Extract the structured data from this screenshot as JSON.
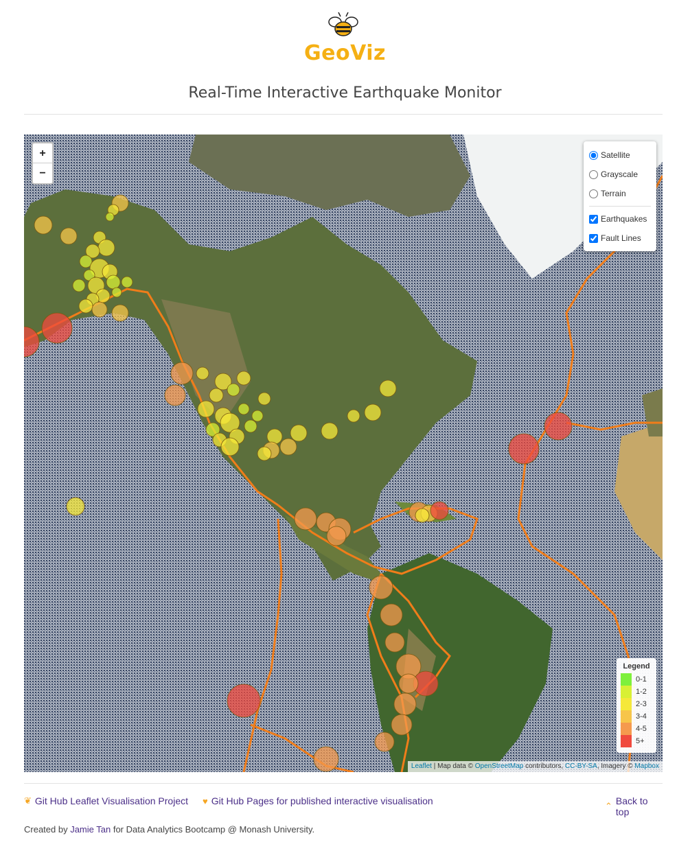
{
  "brand": {
    "name": "GeoViz",
    "color": "#f5b014",
    "logo_icon": "bee-icon"
  },
  "page_title": "Real-Time Interactive Earthquake Monitor",
  "map": {
    "zoom_in_label": "+",
    "zoom_out_label": "−",
    "base_layers": [
      {
        "label": "Satellite",
        "checked": true
      },
      {
        "label": "Grayscale",
        "checked": false
      },
      {
        "label": "Terrain",
        "checked": false
      }
    ],
    "overlays": [
      {
        "label": "Earthquakes",
        "checked": true
      },
      {
        "label": "Fault Lines",
        "checked": true
      }
    ],
    "fault_line_color": "#f07d1a",
    "legend": {
      "title": "Legend",
      "items": [
        {
          "label": "0-1",
          "color": "#7ef03c"
        },
        {
          "label": "1-2",
          "color": "#d8f034"
        },
        {
          "label": "2-3",
          "color": "#f5e83a"
        },
        {
          "label": "3-4",
          "color": "#f7c54a"
        },
        {
          "label": "4-5",
          "color": "#f59a4e"
        },
        {
          "label": "5+",
          "color": "#f04a3e"
        }
      ]
    },
    "attribution": {
      "leaflet": "Leaflet",
      "sep": " | Map data © ",
      "osm": "OpenStreetMap",
      "contrib": " contributors, ",
      "license": "CC-BY-SA",
      "imagery": ", Imagery © ",
      "mapbox": "Mapbox"
    }
  },
  "footer": {
    "link1": "Git Hub Leaflet Visualisation Project",
    "link1_icon": "leaf-icon",
    "link2": "Git Hub Pages for published interactive visualisation",
    "link2_icon": "heart-icon",
    "back_to_top": "Back to top",
    "back_icon": "double-chevron-up-icon",
    "credit_prefix": "Created by ",
    "credit_name": "Jamie Tan",
    "credit_suffix": " for Data Analytics Bootcamp @ Monash University."
  }
}
